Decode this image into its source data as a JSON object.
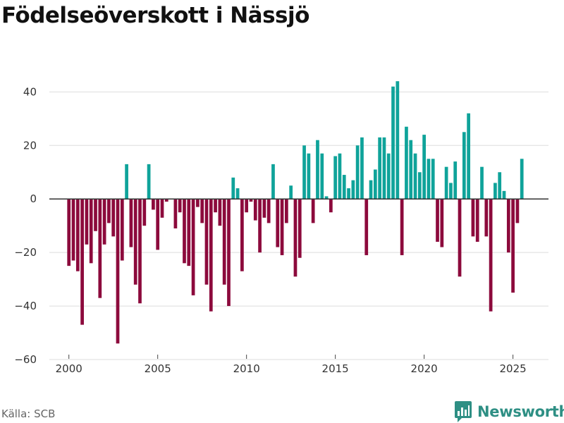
{
  "chart_data": {
    "type": "bar",
    "title": "Födelseöverskott i Nässjö",
    "xlabel": "",
    "ylabel": "",
    "ylim": [
      -60,
      48
    ],
    "xlim": [
      1998.9,
      2027.0
    ],
    "yticks": [
      -60,
      -40,
      -20,
      0,
      20,
      40
    ],
    "xticks": [
      2000,
      2005,
      2010,
      2015,
      2020,
      2025
    ],
    "positive_color": "#0fa39a",
    "negative_color": "#8c0a3c",
    "periods": [
      "2000-01",
      "2000-04",
      "2000-07",
      "2000-10",
      "2001-01",
      "2001-04",
      "2001-07",
      "2001-10",
      "2002-01",
      "2002-04",
      "2002-07",
      "2002-10",
      "2003-01",
      "2003-04",
      "2003-07",
      "2003-10",
      "2004-01",
      "2004-04",
      "2004-07",
      "2004-10",
      "2005-01",
      "2005-04",
      "2005-07",
      "2005-10",
      "2006-01",
      "2006-04",
      "2006-07",
      "2006-10",
      "2007-01",
      "2007-04",
      "2007-07",
      "2007-10",
      "2008-01",
      "2008-04",
      "2008-07",
      "2008-10",
      "2009-01",
      "2009-04",
      "2009-07",
      "2009-10",
      "2010-01",
      "2010-04",
      "2010-07",
      "2010-10",
      "2011-01",
      "2011-04",
      "2011-07",
      "2011-10",
      "2012-01",
      "2012-04",
      "2012-07",
      "2012-10",
      "2013-01",
      "2013-04",
      "2013-07",
      "2013-10",
      "2014-01",
      "2014-04",
      "2014-07",
      "2014-10",
      "2015-01",
      "2015-04",
      "2015-07",
      "2015-10",
      "2016-01",
      "2016-04",
      "2016-07",
      "2016-10",
      "2017-01",
      "2017-04",
      "2017-07",
      "2017-10",
      "2018-01",
      "2018-04",
      "2018-07",
      "2018-10",
      "2019-01",
      "2019-04",
      "2019-07",
      "2019-10",
      "2020-01",
      "2020-04",
      "2020-07",
      "2020-10",
      "2021-01",
      "2021-04",
      "2021-07",
      "2021-10",
      "2022-01",
      "2022-04",
      "2022-07",
      "2022-10",
      "2023-01",
      "2023-04",
      "2023-07",
      "2023-10",
      "2024-01",
      "2024-04",
      "2024-07",
      "2024-10",
      "2025-01",
      "2025-04",
      "2025-07",
      "2025-10"
    ],
    "values": [
      -25,
      -23,
      -27,
      -47,
      -17,
      -24,
      -12,
      -37,
      -17,
      -9,
      -14,
      -54,
      -23,
      13,
      -18,
      -32,
      -39,
      -10,
      13,
      -4,
      -19,
      -7,
      -1,
      0,
      -11,
      -5,
      -24,
      -25,
      -36,
      -3,
      -9,
      -32,
      -42,
      -5,
      -10,
      -32,
      -40,
      8,
      4,
      -27,
      -5,
      -1,
      -8,
      -20,
      -7,
      -9,
      13,
      -18,
      -21,
      -9,
      5,
      -29,
      -22,
      20,
      17,
      -9,
      22,
      17,
      1,
      -5,
      16,
      17,
      9,
      4,
      7,
      20,
      23,
      -21,
      7,
      11,
      23,
      23,
      17,
      42,
      44,
      -21,
      27,
      22,
      17,
      10,
      24,
      15,
      15,
      -16,
      -18,
      12,
      6,
      14,
      -29,
      25,
      32,
      -14,
      -16,
      12,
      -14,
      -42,
      6,
      10,
      3,
      -20,
      -35,
      -9,
      15,
      0
    ]
  },
  "source": "Källa: SCB",
  "brand": {
    "name": "Newsworthy",
    "icon": "newsworthy-logo-icon",
    "color": "#2e8f84"
  }
}
